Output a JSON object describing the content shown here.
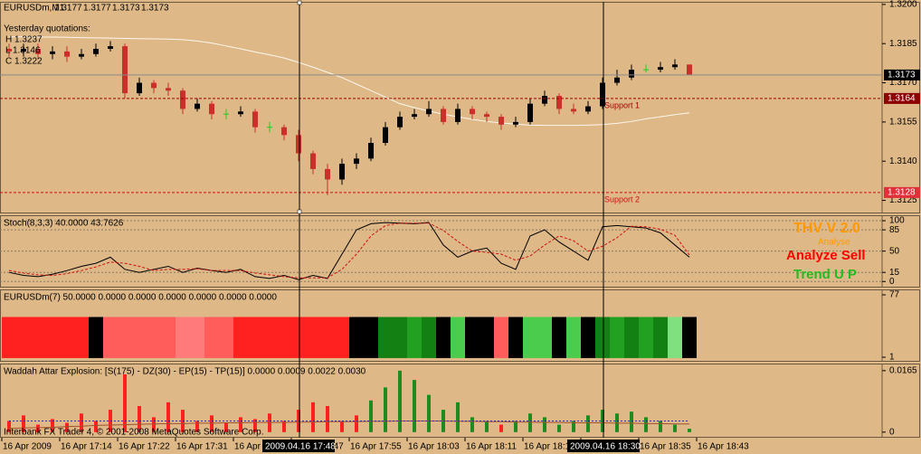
{
  "chart_data": [
    {
      "type": "candlestick",
      "title": "EURUSDm,M1",
      "open": [
        1.3183,
        1.3182,
        1.3183,
        1.3181,
        1.3182,
        1.318,
        1.3181,
        1.3183,
        1.3184,
        1.3166,
        1.317,
        1.3168,
        1.3167,
        1.316,
        1.3162,
        1.3158,
        1.3158,
        1.3159,
        1.3153,
        1.3153,
        1.315,
        1.3143,
        1.3137,
        1.3133,
        1.3139,
        1.3141,
        1.3147,
        1.3153,
        1.3157,
        1.3158,
        1.316,
        1.3155,
        1.316,
        1.3158,
        1.3157,
        1.3154,
        1.3155,
        1.3162,
        1.3165,
        1.316,
        1.3159,
        1.3161,
        1.317,
        1.3172,
        1.3175,
        1.3175,
        1.3176,
        1.3177
      ],
      "high": [
        1.3185,
        1.3185,
        1.3185,
        1.3184,
        1.3184,
        1.3183,
        1.3185,
        1.3186,
        1.3185,
        1.3172,
        1.3171,
        1.317,
        1.3168,
        1.3164,
        1.3163,
        1.316,
        1.3161,
        1.316,
        1.3155,
        1.3154,
        1.3152,
        1.3144,
        1.3139,
        1.3141,
        1.3143,
        1.3149,
        1.3155,
        1.3159,
        1.316,
        1.3163,
        1.3161,
        1.3162,
        1.3161,
        1.3159,
        1.3158,
        1.3157,
        1.3164,
        1.3167,
        1.3166,
        1.3162,
        1.3163,
        1.3172,
        1.3175,
        1.3177,
        1.3177,
        1.3178,
        1.3179,
        1.3177
      ],
      "low": [
        1.318,
        1.318,
        1.3179,
        1.3179,
        1.3178,
        1.3179,
        1.318,
        1.3182,
        1.3164,
        1.3165,
        1.3166,
        1.3165,
        1.3158,
        1.3159,
        1.3156,
        1.3156,
        1.3157,
        1.3151,
        1.3151,
        1.3148,
        1.314,
        1.3135,
        1.3127,
        1.3131,
        1.3137,
        1.314,
        1.3146,
        1.3152,
        1.3156,
        1.3157,
        1.3154,
        1.3154,
        1.3156,
        1.3155,
        1.3152,
        1.3153,
        1.3154,
        1.3161,
        1.3158,
        1.3158,
        1.3158,
        1.316,
        1.3169,
        1.3171,
        1.3174,
        1.3174,
        1.3175,
        1.3173
      ],
      "close": [
        1.3182,
        1.3183,
        1.3181,
        1.3182,
        1.318,
        1.3181,
        1.3183,
        1.3184,
        1.3166,
        1.317,
        1.3168,
        1.3167,
        1.316,
        1.3162,
        1.3158,
        1.3158,
        1.3159,
        1.3153,
        1.3153,
        1.315,
        1.3143,
        1.3137,
        1.3133,
        1.3139,
        1.3141,
        1.3147,
        1.3153,
        1.3157,
        1.3158,
        1.316,
        1.3155,
        1.316,
        1.3158,
        1.3157,
        1.3154,
        1.3155,
        1.3162,
        1.3165,
        1.316,
        1.3159,
        1.3161,
        1.317,
        1.3172,
        1.3175,
        1.3175,
        1.3176,
        1.3177,
        1.3173
      ],
      "colors": {
        "up": "#000000",
        "down": "#c8302a",
        "flat": "#22cc22"
      },
      "ma": {
        "color": "#fff8f0",
        "values": [
          1.31876,
          1.31876,
          1.31875,
          1.31875,
          1.31874,
          1.31873,
          1.31872,
          1.31871,
          1.3187,
          1.31869,
          1.31868,
          1.31867,
          1.31865,
          1.3186,
          1.31852,
          1.31841,
          1.3183,
          1.31818,
          1.31807,
          1.31795,
          1.31778,
          1.3176,
          1.3174,
          1.3172,
          1.31695,
          1.3167,
          1.31645,
          1.3162,
          1.31605,
          1.31592,
          1.3158,
          1.3157,
          1.3156,
          1.31552,
          1.31546,
          1.31542,
          1.31538,
          1.31537,
          1.31537,
          1.31537,
          1.31538,
          1.3154,
          1.31545,
          1.31552,
          1.31562,
          1.3157,
          1.31578,
          1.31585
        ]
      },
      "hlines": [
        {
          "value": 1.3173,
          "color": "#8a8a8a",
          "box": "#000000",
          "dash": false
        },
        {
          "value": 1.3164,
          "color": "#a00000",
          "box": "#8b0000",
          "dash": true,
          "text": "Support 1"
        },
        {
          "value": 1.3128,
          "color": "#d01010",
          "box": "#e0303a",
          "dash": true,
          "text": "Support 2"
        }
      ],
      "annotations": [
        "Yesterday quotations:",
        "H 1.3237",
        "L 1.3146",
        "C 1.3222"
      ],
      "ylim": [
        1.312,
        1.3201
      ],
      "yticks": [
        {
          "value": 1.32,
          "label": "1.3200"
        },
        1.3185,
        {
          "value": 1.317,
          "label": "1.3170"
        },
        1.3155,
        {
          "value": 1.314,
          "label": "1.3140"
        },
        1.3125
      ],
      "grid": false
    },
    {
      "type": "line",
      "title": "Stoch(8,3,3) 40.0000 43.7626",
      "series": [
        {
          "color": "#000000",
          "dash": false,
          "values": [
            15,
            10,
            8,
            12,
            18,
            25,
            30,
            40,
            20,
            15,
            20,
            25,
            15,
            22,
            18,
            15,
            20,
            8,
            5,
            10,
            3,
            10,
            5,
            45,
            85,
            95,
            97,
            96,
            95,
            97,
            60,
            40,
            50,
            55,
            30,
            20,
            75,
            85,
            65,
            50,
            35,
            90,
            92,
            90,
            88,
            80,
            60,
            40
          ]
        },
        {
          "color": "#d01010",
          "dash": true,
          "values": [
            18,
            14,
            11,
            10,
            13,
            18,
            24,
            32,
            30,
            25,
            18,
            20,
            20,
            21,
            18,
            18,
            18,
            14,
            11,
            8,
            6,
            6,
            6,
            20,
            45,
            75,
            92,
            96,
            96,
            96,
            84,
            66,
            50,
            48,
            45,
            35,
            42,
            60,
            75,
            67,
            50,
            58,
            72,
            91,
            90,
            86,
            76,
            43.7626
          ]
        }
      ],
      "annotations": [
        "THV V 2.0",
        "Analyse",
        "Analyze Sell",
        "Trend U P"
      ],
      "ylim": [
        -10,
        109
      ],
      "yticks": [
        100,
        85,
        50,
        15,
        0
      ],
      "grid": true
    },
    {
      "type": "bar",
      "title": "EURUSDm(7) 50.0000 0.0000 0.0000 0.0000 0.0000 0.0000 0.0000",
      "values": [
        50,
        50,
        50,
        50,
        50,
        50,
        50,
        50,
        50,
        50,
        50,
        50,
        50,
        50,
        50,
        50,
        50,
        50,
        50,
        50,
        50,
        50,
        50,
        50,
        50,
        50,
        50,
        50,
        50,
        50,
        50,
        50,
        50,
        50,
        50,
        50,
        50,
        50,
        50,
        50,
        50,
        50,
        50,
        50,
        50,
        50,
        50,
        50
      ],
      "colors": [
        "#ff2020",
        "#ff2020",
        "#ff2020",
        "#ff2020",
        "#ff2020",
        "#ff2020",
        "#000000",
        "#ff5c5c",
        "#ff5c5c",
        "#ff5c5c",
        "#ff5c5c",
        "#ff5c5c",
        "#ff7a7a",
        "#ff7a7a",
        "#ff5c5c",
        "#ff5c5c",
        "#ff2020",
        "#ff2020",
        "#ff2020",
        "#ff2020",
        "#ff2020",
        "#ff2020",
        "#ff2020",
        "#ff2020",
        "#000000",
        "#000000",
        "#128012",
        "#128012",
        "#22a022",
        "#128012",
        "#000000",
        "#4ccc4c",
        "#000000",
        "#000000",
        "#ff5c5c",
        "#000000",
        "#4ccc4c",
        "#4ccc4c",
        "#000000",
        "#4ccc4c",
        "#000000",
        "#128012",
        "#22a022",
        "#128012",
        "#22a022",
        "#128012",
        "#7ee07e",
        "#000000"
      ],
      "lines": [],
      "ylim": [
        -4.5,
        83.6
      ],
      "yticks": [
        77,
        1
      ],
      "grid": false
    },
    {
      "type": "bar",
      "title": "Waddah Attar Explosion: [S(175) - DZ(30) - EP(15) - TP(15)] 0.0000 0.0009 0.0022 0.0030",
      "values": [
        0.003,
        0.0045,
        0.002,
        0.0035,
        0.0025,
        0.005,
        0.003,
        0.006,
        0.0155,
        0.007,
        0.004,
        0.008,
        0.006,
        0.003,
        0.0045,
        0.0025,
        0.004,
        0.0035,
        0.005,
        0.003,
        0.006,
        0.008,
        0.007,
        0.003,
        0.0045,
        0.0085,
        0.012,
        0.0165,
        0.014,
        0.01,
        0.006,
        0.008,
        0.004,
        0.003,
        0.002,
        0.003,
        0.005,
        0.004,
        0.002,
        0.003,
        0.0045,
        0.006,
        0.005,
        0.0055,
        0.004,
        0.003,
        0.002,
        0.0009
      ],
      "colors": [
        "#ff2020",
        "#ff2020",
        "#ff2020",
        "#ff2020",
        "#ff2020",
        "#ff2020",
        "#ff2020",
        "#ff2020",
        "#ff2020",
        "#ff2020",
        "#ff2020",
        "#ff2020",
        "#ff2020",
        "#ff2020",
        "#ff2020",
        "#ff2020",
        "#ff2020",
        "#ff2020",
        "#ff2020",
        "#ff2020",
        "#ff2020",
        "#ff2020",
        "#ff2020",
        "#ff2020",
        "#ff2020",
        "#1f8a1f",
        "#1f8a1f",
        "#1f8a1f",
        "#1f8a1f",
        "#1f8a1f",
        "#1f8a1f",
        "#1f8a1f",
        "#1f8a1f",
        "#1f8a1f",
        "#ff2020",
        "#1f8a1f",
        "#1f8a1f",
        "#1f8a1f",
        "#1f8a1f",
        "#1f8a1f",
        "#1f8a1f",
        "#1f8a1f",
        "#1f8a1f",
        "#1f8a1f",
        "#1f8a1f",
        "#1f8a1f",
        "#1f8a1f",
        "#1f8a1f"
      ],
      "lines": [
        {
          "color": "#a0522d",
          "dash": false,
          "values": [
            0.001,
            0.0011,
            0.0012,
            0.0013,
            0.0015,
            0.0016,
            0.0018,
            0.0019,
            0.002,
            0.0021,
            0.0022,
            0.0023,
            0.0023,
            0.0024,
            0.0024,
            0.0025,
            0.0025,
            0.0026,
            0.0026,
            0.0026,
            0.0027,
            0.0027,
            0.0028,
            0.0028,
            0.0028,
            0.0029,
            0.0029,
            0.003,
            0.003,
            0.003,
            0.003,
            0.0029,
            0.0029,
            0.0028,
            0.0028,
            0.0027,
            0.0027,
            0.0026,
            0.0026,
            0.0025,
            0.0025,
            0.0025,
            0.0024,
            0.0024,
            0.0023,
            0.0023,
            0.0022,
            0.0022
          ]
        },
        {
          "color": "#2030c0",
          "dash": true,
          "values": [
            0.003,
            0.003,
            0.003,
            0.003,
            0.003,
            0.003,
            0.003,
            0.003,
            0.003,
            0.003,
            0.003,
            0.003,
            0.003,
            0.003,
            0.003,
            0.003,
            0.003,
            0.003,
            0.003,
            0.003,
            0.003,
            0.003,
            0.003,
            0.003,
            0.003,
            0.003,
            0.003,
            0.003,
            0.003,
            0.003,
            0.003,
            0.003,
            0.003,
            0.003,
            0.003,
            0.003,
            0.003,
            0.003,
            0.003,
            0.003,
            0.003,
            0.003,
            0.003,
            0.003,
            0.003,
            0.003,
            0.003,
            0.003
          ]
        }
      ],
      "ylim": [
        -0.0015,
        0.0184
      ],
      "yticks": [
        0.0165,
        0
      ],
      "grid": false
    }
  ],
  "x_labels": [
    "16 Apr 2009",
    "16 Apr 17:14",
    "16 Apr 17:22",
    "16 Apr 17:31",
    "16 Apr 17:39",
    "16 Apr 17:47",
    "16 Apr 17:55",
    "16 Apr 18:03",
    "16 Apr 18:11",
    "16 Apr 18:19",
    "16 Apr 18:27",
    "16 Apr 18:35",
    "16 Apr 18:43"
  ],
  "crosshair_times": [
    "2009.04.16 17:48",
    "2009.04.16 18:30"
  ],
  "watermark": "Interbank FX Trader 4, © 2001-2008 MetaQuotes Software Corp."
}
